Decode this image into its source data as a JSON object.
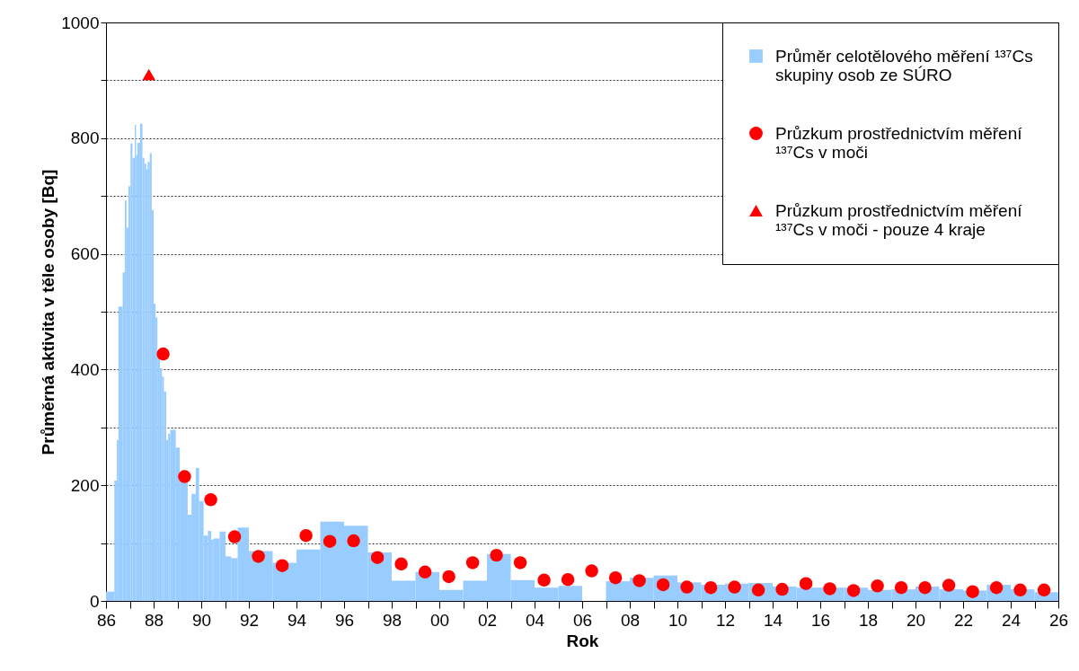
{
  "chart_data": {
    "type": "histogram",
    "xlabel": "Rok",
    "ylabel": "Průměrná aktivita v těle osoby  [Bq]",
    "xlim": [
      1986,
      2026
    ],
    "ylim": [
      0,
      1000
    ],
    "xticks": [
      {
        "value": 1986,
        "label": "86"
      },
      {
        "value": 1987,
        "label": null
      },
      {
        "value": 1988,
        "label": "88"
      },
      {
        "value": 1989,
        "label": null
      },
      {
        "value": 1990,
        "label": "90"
      },
      {
        "value": 1991,
        "label": null
      },
      {
        "value": 1992,
        "label": "92"
      },
      {
        "value": 1993,
        "label": null
      },
      {
        "value": 1994,
        "label": "94"
      },
      {
        "value": 1995,
        "label": null
      },
      {
        "value": 1996,
        "label": "96"
      },
      {
        "value": 1997,
        "label": null
      },
      {
        "value": 1998,
        "label": "98"
      },
      {
        "value": 1999,
        "label": null
      },
      {
        "value": 2000,
        "label": "00"
      },
      {
        "value": 2001,
        "label": null
      },
      {
        "value": 2002,
        "label": "02"
      },
      {
        "value": 2003,
        "label": null
      },
      {
        "value": 2004,
        "label": "04"
      },
      {
        "value": 2005,
        "label": null
      },
      {
        "value": 2006,
        "label": "06"
      },
      {
        "value": 2007,
        "label": null
      },
      {
        "value": 2008,
        "label": "08"
      },
      {
        "value": 2009,
        "label": null
      },
      {
        "value": 2010,
        "label": "10"
      },
      {
        "value": 2011,
        "label": null
      },
      {
        "value": 2012,
        "label": "12"
      },
      {
        "value": 2013,
        "label": null
      },
      {
        "value": 2014,
        "label": "14"
      },
      {
        "value": 2015,
        "label": null
      },
      {
        "value": 2016,
        "label": "16"
      },
      {
        "value": 2017,
        "label": null
      },
      {
        "value": 2018,
        "label": "18"
      },
      {
        "value": 2019,
        "label": null
      },
      {
        "value": 2020,
        "label": "20"
      },
      {
        "value": 2021,
        "label": null
      },
      {
        "value": 2022,
        "label": "22"
      },
      {
        "value": 2023,
        "label": null
      },
      {
        "value": 2024,
        "label": "24"
      },
      {
        "value": 2025,
        "label": null
      },
      {
        "value": 2026,
        "label": "26"
      }
    ],
    "yticks": [
      0,
      {
        "value": 100,
        "label": null
      },
      200,
      {
        "value": 300,
        "label": null
      },
      400,
      {
        "value": 500,
        "label": null
      },
      600,
      {
        "value": 700,
        "label": null
      },
      800,
      {
        "value": 900,
        "label": null
      },
      1000
    ],
    "grid": "y",
    "legend": "top right",
    "series": [
      {
        "name": "Průměr celotělového měření ¹³⁷Cs skupiny osob ze SÚRO",
        "color": "#99ccff",
        "bins": [
          1986,
          1986.35,
          1986.45,
          1986.52,
          1986.7,
          1986.79,
          1986.86,
          1986.94,
          1987.03,
          1987.11,
          1987.21,
          1987.26,
          1987.32,
          1987.43,
          1987.53,
          1987.61,
          1987.69,
          1987.75,
          1987.84,
          1987.92,
          1988.0,
          1988.08,
          1988.16,
          1988.26,
          1988.35,
          1988.43,
          1988.53,
          1988.61,
          1988.7,
          1988.93,
          1989.1,
          1989.43,
          1989.59,
          1989.77,
          1989.91,
          1990.1,
          1990.28,
          1990.42,
          1990.52,
          1990.77,
          1991.02,
          1991.26,
          1991.53,
          1992,
          1993,
          1994,
          1995,
          1996,
          1997,
          1998,
          1999,
          2000,
          2001,
          2002,
          2003,
          2004,
          2005,
          2006,
          2007,
          2008,
          2009,
          2010,
          2011,
          2012,
          2013,
          2014,
          2015,
          2016,
          2017,
          2018,
          2019,
          2020,
          2021,
          2022,
          2023,
          2024,
          2025,
          2026
        ],
        "values": [
          16,
          208,
          278,
          509,
          568,
          692,
          645,
          717,
          791,
          766,
          823,
          771,
          792,
          825,
          766,
          756,
          746,
          759,
          774,
          676,
          514,
          490,
          432,
          402,
          388,
          362,
          278,
          289,
          296,
          265,
          209,
          149,
          185,
          230,
          173,
          113,
          121,
          106,
          108,
          120,
          77,
          74,
          127,
          86,
          66,
          89,
          137,
          130,
          84,
          35,
          50,
          19,
          35,
          81,
          36,
          23,
          26,
          0,
          34,
          40,
          44,
          32,
          28,
          30,
          31,
          25,
          23,
          23,
          23,
          19,
          20,
          25,
          20,
          18,
          28,
          20,
          15
        ]
      },
      {
        "type": "scatter",
        "name": "Průzkum prostřednictvím měření ¹³⁷Cs v moči",
        "color": "#ff0000",
        "marker": "circle",
        "x": [
          1988.4,
          1989.3,
          1990.4,
          1991.4,
          1992.4,
          1993.4,
          1994.4,
          1995.4,
          1996.4,
          1997.4,
          1998.4,
          1999.4,
          2000.4,
          2001.4,
          2002.4,
          2003.4,
          2004.4,
          2005.4,
          2006.4,
          2007.4,
          2008.4,
          2009.4,
          2010.4,
          2011.4,
          2012.4,
          2013.4,
          2014.4,
          2015.4,
          2016.4,
          2017.4,
          2018.4,
          2019.4,
          2020.4,
          2021.4,
          2022.4,
          2023.4,
          2024.4,
          2025.4
        ],
        "values": [
          427,
          215,
          175,
          111,
          77,
          61,
          113,
          103,
          104,
          75,
          64,
          50,
          42,
          66,
          79,
          66,
          36,
          37,
          52,
          40,
          35,
          28,
          24,
          23,
          24,
          19,
          20,
          30,
          21,
          18,
          26,
          23,
          23,
          27,
          16,
          23,
          19,
          19
        ]
      },
      {
        "type": "scatter",
        "name": "Průzkum prostřednictvím měření ¹³⁷Cs v moči - pouze 4 kraje",
        "color": "#ff0000",
        "marker": "triangle",
        "x": [
          1987.8
        ],
        "values": [
          910
        ]
      }
    ]
  }
}
